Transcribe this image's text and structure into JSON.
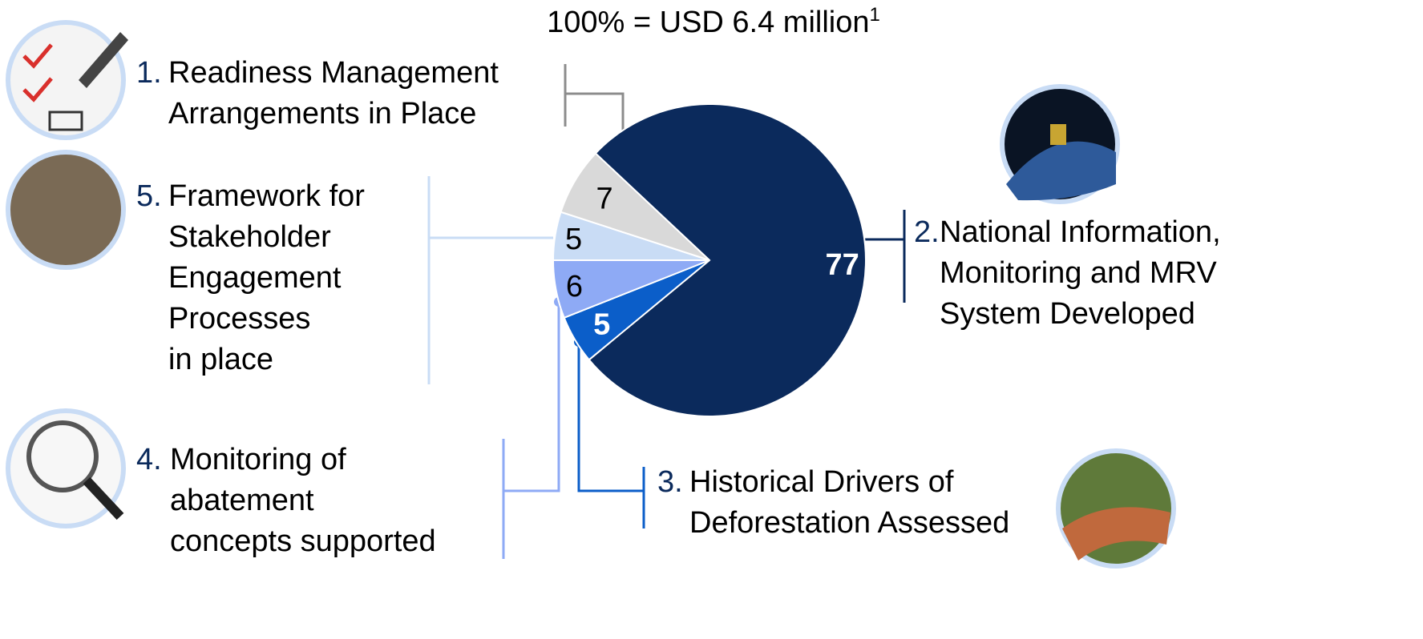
{
  "chart_data": {
    "type": "pie",
    "title": "100% = USD 6.4 million",
    "title_footnote": "1",
    "numbers": [
      "2.",
      "3.",
      "4.",
      "5.",
      "1."
    ],
    "categories": [
      [
        "National Information,",
        "Monitoring and MRV",
        "System Developed"
      ],
      [
        "Historical Drivers of",
        "Deforestation Assessed"
      ],
      [
        "Monitoring of",
        "abatement",
        "concepts supported"
      ],
      [
        "Framework for",
        "Stakeholder",
        "Engagement",
        "Processes",
        "in place"
      ],
      [
        "Readiness Management",
        "Arrangements in Place"
      ]
    ],
    "values": [
      77,
      5,
      6,
      5,
      7
    ],
    "colors": [
      "#0b2a5c",
      "#0b5ec9",
      "#8eaaf5",
      "#c9dcf5",
      "#d9d9d9"
    ]
  }
}
